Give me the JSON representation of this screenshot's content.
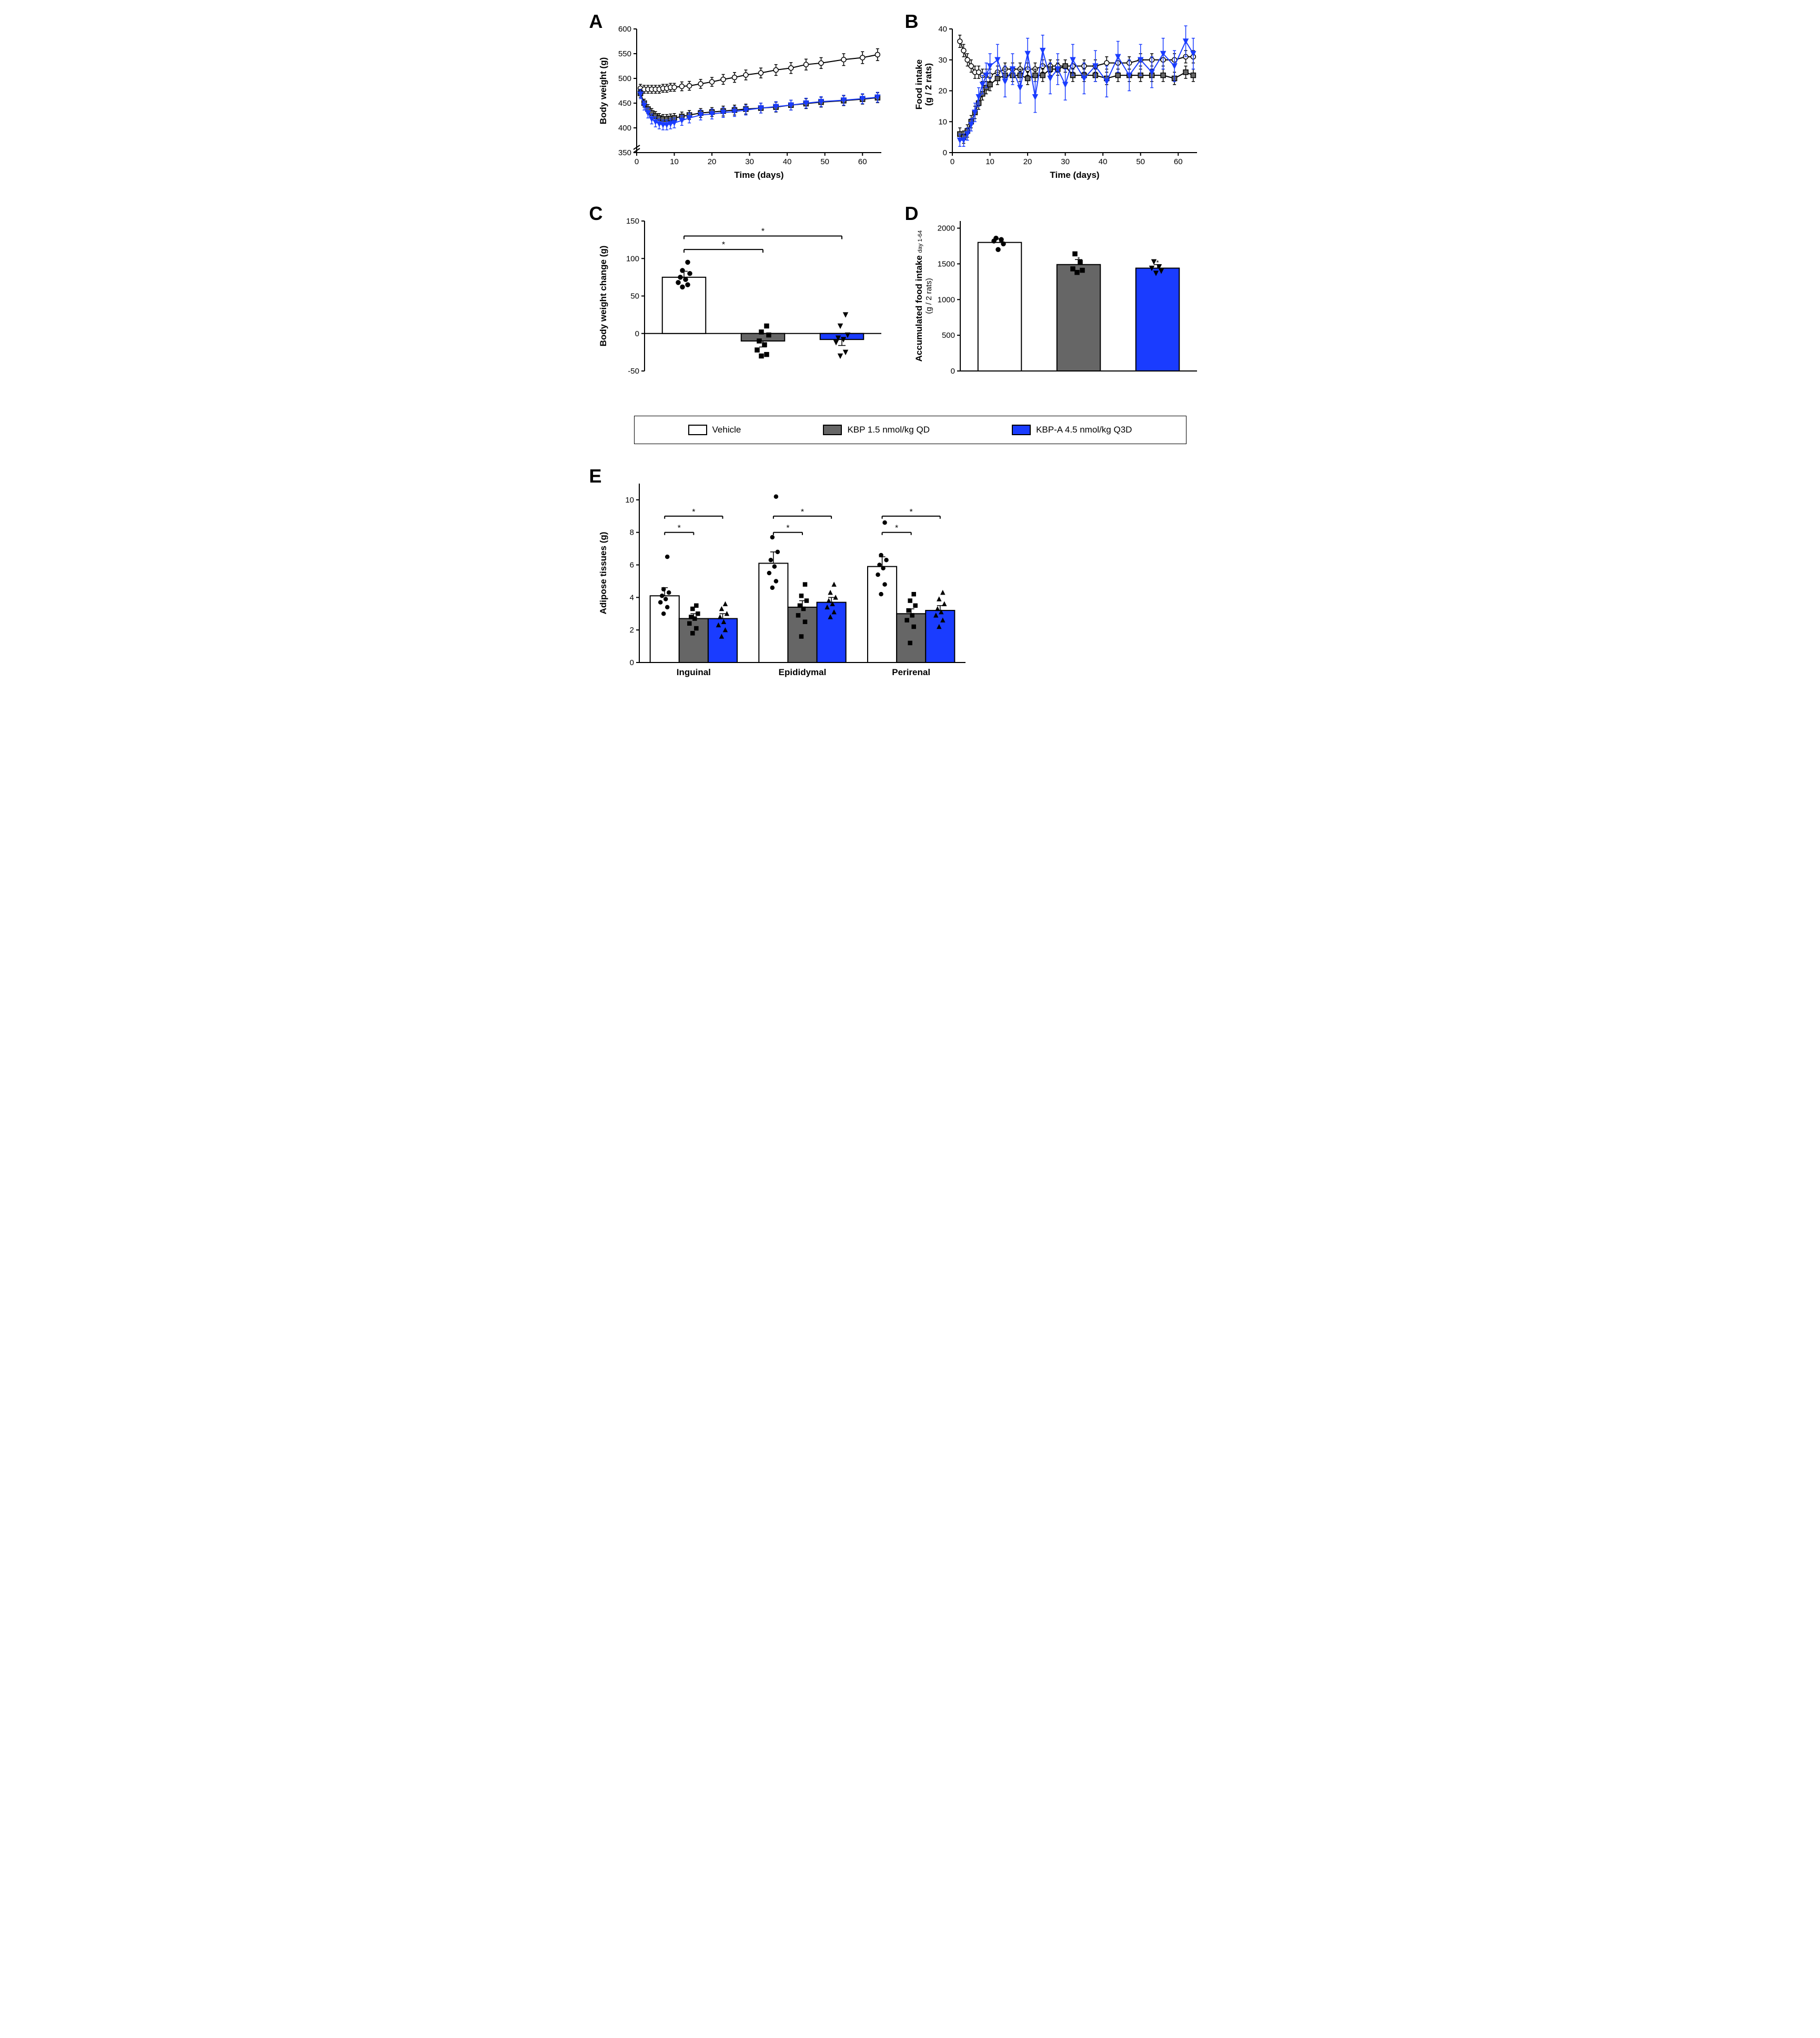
{
  "colors": {
    "vehicle": "#ffffff",
    "kbp": "#666666",
    "kbpa": "#1a3cff",
    "black": "#000000"
  },
  "legend": {
    "vehicle": "Vehicle",
    "kbp": "KBP 1.5 nmol/kg QD",
    "kbpa": "KBP-A 4.5 nmol/kg Q3D"
  },
  "panelA": {
    "label": "A",
    "xlabel": "Time (days)",
    "ylabel": "Body weight (g)",
    "xlim": [
      0,
      65
    ],
    "xticks": [
      0,
      10,
      20,
      30,
      40,
      50,
      60
    ],
    "ylim": [
      350,
      600
    ],
    "yticks": [
      350,
      400,
      450,
      500,
      550,
      600
    ],
    "ybreak": true,
    "series": {
      "vehicle": {
        "x": [
          1,
          2,
          3,
          4,
          5,
          6,
          7,
          8,
          9,
          10,
          12,
          14,
          17,
          20,
          23,
          26,
          29,
          33,
          37,
          41,
          45,
          49,
          55,
          60,
          64
        ],
        "y": [
          480,
          478,
          478,
          478,
          478,
          478,
          480,
          480,
          482,
          482,
          484,
          485,
          489,
          493,
          498,
          502,
          507,
          511,
          517,
          521,
          528,
          531,
          538,
          542,
          548
        ],
        "err": [
          8,
          8,
          8,
          8,
          8,
          8,
          8,
          8,
          8,
          8,
          9,
          9,
          9,
          9,
          10,
          10,
          10,
          10,
          11,
          11,
          11,
          11,
          12,
          12,
          12
        ]
      },
      "kbp": {
        "x": [
          1,
          2,
          3,
          4,
          5,
          6,
          7,
          8,
          9,
          10,
          12,
          14,
          17,
          20,
          23,
          26,
          29,
          33,
          37,
          41,
          45,
          49,
          55,
          60,
          64
        ],
        "y": [
          470,
          450,
          438,
          430,
          424,
          420,
          418,
          418,
          419,
          420,
          423,
          426,
          430,
          432,
          434,
          436,
          438,
          440,
          442,
          446,
          449,
          452,
          455,
          458,
          461
        ],
        "err": [
          8,
          8,
          9,
          9,
          9,
          9,
          9,
          9,
          9,
          9,
          9,
          9,
          9,
          9,
          10,
          10,
          10,
          10,
          10,
          10,
          10,
          10,
          10,
          10,
          10
        ]
      },
      "kbpa": {
        "x": [
          1,
          2,
          3,
          4,
          5,
          6,
          7,
          8,
          9,
          10,
          12,
          14,
          17,
          20,
          23,
          26,
          29,
          33,
          37,
          41,
          45,
          49,
          55,
          60,
          64
        ],
        "y": [
          468,
          445,
          430,
          418,
          412,
          408,
          406,
          406,
          408,
          410,
          415,
          420,
          426,
          428,
          431,
          433,
          436,
          440,
          443,
          446,
          450,
          453,
          456,
          459,
          462
        ],
        "err": [
          9,
          9,
          10,
          10,
          10,
          10,
          10,
          10,
          10,
          10,
          10,
          10,
          10,
          10,
          10,
          10,
          10,
          10,
          10,
          10,
          10,
          10,
          10,
          10,
          10
        ]
      }
    }
  },
  "panelB": {
    "label": "B",
    "xlabel": "Time (days)",
    "ylabel": "Food intake",
    "ylabel2": "(g / 2 rats)",
    "xlim": [
      0,
      65
    ],
    "xticks": [
      0,
      10,
      20,
      30,
      40,
      50,
      60
    ],
    "ylim": [
      0,
      40
    ],
    "yticks": [
      0,
      10,
      20,
      30,
      40
    ],
    "series": {
      "vehicle": {
        "x": [
          2,
          3,
          4,
          5,
          6,
          7,
          8,
          9,
          10,
          12,
          14,
          16,
          18,
          20,
          22,
          24,
          26,
          28,
          30,
          32,
          35,
          38,
          41,
          44,
          47,
          50,
          53,
          56,
          59,
          62,
          64
        ],
        "y": [
          36,
          33,
          30,
          28,
          26,
          26,
          25,
          25,
          25,
          26,
          27,
          27,
          27,
          27,
          27,
          28,
          28,
          28,
          28,
          28,
          28,
          28,
          29,
          29,
          29,
          30,
          30,
          30,
          30,
          31,
          31
        ],
        "err": [
          2,
          2,
          2,
          2,
          2,
          2,
          2,
          2,
          2,
          2,
          2,
          2,
          2,
          2,
          2,
          2,
          2,
          2,
          2,
          2,
          2,
          2,
          2,
          2,
          2,
          2,
          2,
          2,
          2,
          2,
          2
        ]
      },
      "kbp": {
        "x": [
          2,
          3,
          4,
          5,
          6,
          7,
          8,
          9,
          10,
          12,
          14,
          16,
          18,
          20,
          22,
          24,
          26,
          28,
          30,
          32,
          35,
          38,
          41,
          44,
          47,
          50,
          53,
          56,
          59,
          62,
          64
        ],
        "y": [
          6,
          5,
          7,
          10,
          13,
          16,
          19,
          21,
          22,
          24,
          25,
          25,
          25,
          24,
          25,
          25,
          27,
          27,
          28,
          25,
          25,
          25,
          24,
          25,
          25,
          25,
          25,
          25,
          24,
          26,
          25
        ],
        "err": [
          2,
          2,
          2,
          2,
          2,
          2,
          2,
          2,
          2,
          2,
          2,
          2,
          2,
          2,
          2,
          2,
          2,
          2,
          2,
          2,
          2,
          2,
          2,
          2,
          2,
          2,
          2,
          2,
          2,
          2,
          2
        ]
      },
      "kbpa": {
        "x": [
          2,
          3,
          4,
          5,
          6,
          7,
          8,
          9,
          10,
          12,
          14,
          16,
          18,
          20,
          22,
          24,
          26,
          28,
          30,
          32,
          35,
          38,
          41,
          44,
          47,
          50,
          53,
          56,
          59,
          62,
          64
        ],
        "y": [
          4,
          4,
          6,
          9,
          13,
          18,
          22,
          25,
          28,
          30,
          23,
          27,
          21,
          32,
          18,
          33,
          24,
          27,
          22,
          30,
          24,
          28,
          23,
          31,
          25,
          30,
          26,
          32,
          28,
          36,
          32
        ],
        "err": [
          2,
          2,
          2,
          2,
          3,
          3,
          3,
          4,
          4,
          5,
          5,
          5,
          5,
          5,
          5,
          5,
          5,
          5,
          5,
          5,
          5,
          5,
          5,
          5,
          5,
          5,
          5,
          5,
          5,
          5,
          5
        ]
      }
    }
  },
  "panelC": {
    "label": "C",
    "ylabel": "Body weight change (g)",
    "ylim": [
      -50,
      150
    ],
    "yticks": [
      -50,
      0,
      50,
      100,
      150
    ],
    "groups": [
      "vehicle",
      "kbp",
      "kbpa"
    ],
    "bars": {
      "vehicle": 75,
      "kbp": -10,
      "kbpa": -8
    },
    "err": {
      "vehicle": 8,
      "kbp": 8,
      "kbpa": 8
    },
    "points": {
      "vehicle": [
        62,
        65,
        68,
        72,
        75,
        80,
        84,
        95
      ],
      "kbp": [
        -30,
        -28,
        -22,
        -15,
        -10,
        -2,
        2,
        10
      ],
      "kbpa": [
        -30,
        -25,
        -12,
        -8,
        -6,
        -2,
        10,
        25
      ]
    },
    "sig": [
      {
        "g1": 0,
        "g2": 1,
        "y": 112,
        "star": "*"
      },
      {
        "g1": 0,
        "g2": 2,
        "y": 130,
        "star": "*"
      }
    ]
  },
  "panelD": {
    "label": "D",
    "ylabel": "Accumulated food intake",
    "ylabelSub": "day 1-64",
    "ylabel2": "(g / 2 rats)",
    "ylim": [
      0,
      2100
    ],
    "yticks": [
      0,
      500,
      1000,
      1500,
      2000
    ],
    "groups": [
      "vehicle",
      "kbp",
      "kbpa"
    ],
    "bars": {
      "vehicle": 1800,
      "kbp": 1490,
      "kbpa": 1440
    },
    "err": {
      "vehicle": 50,
      "kbp": 70,
      "kbpa": 50
    },
    "points": {
      "vehicle": [
        1700,
        1780,
        1820,
        1840,
        1860
      ],
      "kbp": [
        1380,
        1410,
        1430,
        1520,
        1640
      ],
      "kbpa": [
        1370,
        1400,
        1440,
        1460,
        1530
      ]
    },
    "starUnder": {
      "kbp": "*",
      "kbpa": "*"
    }
  },
  "panelE": {
    "label": "E",
    "ylabel": "Adipose tissues (g)",
    "ylim": [
      0,
      11
    ],
    "yticks": [
      0,
      2,
      4,
      6,
      8,
      10
    ],
    "tissues": [
      "Inguinal",
      "Epididymal",
      "Perirenal"
    ],
    "groups": [
      "vehicle",
      "kbp",
      "kbpa"
    ],
    "bars": {
      "Inguinal": {
        "vehicle": 4.1,
        "kbp": 2.7,
        "kbpa": 2.7
      },
      "Epididymal": {
        "vehicle": 6.1,
        "kbp": 3.4,
        "kbpa": 3.7
      },
      "Perirenal": {
        "vehicle": 5.9,
        "kbp": 3.0,
        "kbpa": 3.2
      }
    },
    "err": {
      "Inguinal": {
        "vehicle": 0.5,
        "kbp": 0.3,
        "kbpa": 0.3
      },
      "Epididymal": {
        "vehicle": 0.7,
        "kbp": 0.4,
        "kbpa": 0.3
      },
      "Perirenal": {
        "vehicle": 0.6,
        "kbp": 0.3,
        "kbpa": 0.3
      }
    },
    "points": {
      "Inguinal": {
        "vehicle": [
          3.0,
          3.4,
          3.7,
          3.9,
          4.1,
          4.3,
          4.5,
          6.5
        ],
        "kbp": [
          1.8,
          2.1,
          2.4,
          2.7,
          2.8,
          3.0,
          3.3,
          3.5
        ],
        "kbpa": [
          1.6,
          2.0,
          2.3,
          2.5,
          2.8,
          3.0,
          3.3,
          3.6
        ]
      },
      "Epididymal": {
        "vehicle": [
          4.6,
          5.0,
          5.5,
          5.9,
          6.3,
          6.8,
          7.7,
          10.2
        ],
        "kbp": [
          1.6,
          2.5,
          2.9,
          3.3,
          3.5,
          3.8,
          4.1,
          4.8
        ],
        "kbpa": [
          2.8,
          3.1,
          3.4,
          3.6,
          3.8,
          4.0,
          4.3,
          4.8
        ]
      },
      "Perirenal": {
        "vehicle": [
          4.2,
          4.8,
          5.4,
          5.8,
          6.0,
          6.3,
          6.6,
          8.6
        ],
        "kbp": [
          1.2,
          2.2,
          2.6,
          2.9,
          3.2,
          3.5,
          3.8,
          4.2
        ],
        "kbpa": [
          2.2,
          2.6,
          2.9,
          3.1,
          3.3,
          3.6,
          3.9,
          4.3
        ]
      }
    },
    "sig": [
      {
        "tissue": 0,
        "g1": 0,
        "g2": 1,
        "y": 8.0,
        "star": "*"
      },
      {
        "tissue": 0,
        "g1": 0,
        "g2": 2,
        "y": 9.0,
        "star": "*"
      },
      {
        "tissue": 1,
        "g1": 0,
        "g2": 1,
        "y": 8.0,
        "star": "*"
      },
      {
        "tissue": 1,
        "g1": 0,
        "g2": 2,
        "y": 9.0,
        "star": "*"
      },
      {
        "tissue": 2,
        "g1": 0,
        "g2": 1,
        "y": 8.0,
        "star": "*"
      },
      {
        "tissue": 2,
        "g1": 0,
        "g2": 2,
        "y": 9.0,
        "star": "*"
      }
    ]
  }
}
